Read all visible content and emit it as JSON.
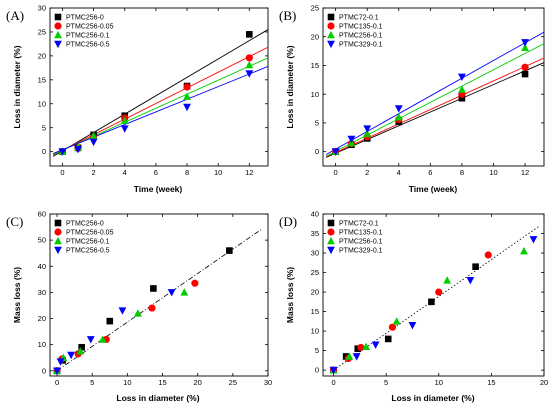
{
  "figure": {
    "symbols": {
      "square": "#000000",
      "circle": "#ff0000",
      "triangle_up": "#00cc00",
      "triangle_down": "#0000ff"
    }
  },
  "chart_data": [
    {
      "panel_label": "(A)",
      "type": "scatter",
      "xlabel": "Time (week)",
      "ylabel": "Loss in diameter (%)",
      "xlim": [
        -0.8,
        13.2
      ],
      "ylim": [
        -3,
        30
      ],
      "xticks": [
        0,
        2,
        4,
        6,
        8,
        10,
        12
      ],
      "yticks": [
        0,
        5,
        10,
        15,
        20,
        25,
        30
      ],
      "grid": false,
      "legend_position": "top-left",
      "series": [
        {
          "name": "PTMC256-0",
          "marker": "square",
          "color": "#000000",
          "x": [
            0,
            1,
            2,
            4,
            8,
            12
          ],
          "y": [
            0,
            0.8,
            3.5,
            7.5,
            13.7,
            24.5
          ],
          "fit": [
            [
              -0.6,
              -1.0
            ],
            [
              13.2,
              25.5
            ]
          ]
        },
        {
          "name": "PTMC256-0.05",
          "marker": "circle",
          "color": "#ff0000",
          "x": [
            0,
            1,
            2,
            4,
            8,
            12
          ],
          "y": [
            0,
            0.7,
            3.0,
            7.0,
            13.5,
            19.6
          ],
          "fit": [
            [
              -0.6,
              -0.7
            ],
            [
              13.2,
              21.8
            ]
          ]
        },
        {
          "name": "PTMC256-0.1",
          "marker": "triangle_up",
          "color": "#00cc00",
          "x": [
            0,
            1,
            2,
            4,
            8,
            12
          ],
          "y": [
            0,
            0.9,
            3.3,
            6.5,
            11.5,
            18.1
          ],
          "fit": [
            [
              -0.6,
              -0.6
            ],
            [
              13.2,
              19.6
            ]
          ]
        },
        {
          "name": "PTMC256-0.5",
          "marker": "triangle_down",
          "color": "#0000ff",
          "x": [
            0,
            1,
            2,
            4,
            8,
            12
          ],
          "y": [
            0,
            0.5,
            2.0,
            4.8,
            9.3,
            16.3
          ],
          "fit": [
            [
              -0.6,
              -0.4
            ],
            [
              13.2,
              17.8
            ]
          ]
        }
      ]
    },
    {
      "panel_label": "(B)",
      "type": "scatter",
      "xlabel": "Time (week)",
      "ylabel": "Loss in diameter (%)",
      "xlim": [
        -0.8,
        13.2
      ],
      "ylim": [
        -2.5,
        25
      ],
      "xticks": [
        0,
        2,
        4,
        6,
        8,
        10,
        12
      ],
      "yticks": [
        0,
        5,
        10,
        15,
        20,
        25
      ],
      "grid": false,
      "legend_position": "top-left",
      "series": [
        {
          "name": "PTMC72-0.1",
          "marker": "square",
          "color": "#000000",
          "x": [
            0,
            1,
            2,
            4,
            8,
            12
          ],
          "y": [
            0,
            1.2,
            2.3,
            5.2,
            9.3,
            13.5
          ],
          "fit": [
            [
              -0.6,
              -1.0
            ],
            [
              13.2,
              15.5
            ]
          ]
        },
        {
          "name": "PTMC135-0.1",
          "marker": "circle",
          "color": "#ff0000",
          "x": [
            0,
            1,
            2,
            4,
            8,
            12
          ],
          "y": [
            0,
            1.4,
            2.6,
            5.6,
            10.0,
            14.7
          ],
          "fit": [
            [
              -0.6,
              -0.9
            ],
            [
              13.2,
              16.3
            ]
          ]
        },
        {
          "name": "PTMC256-0.1",
          "marker": "triangle_up",
          "color": "#00cc00",
          "x": [
            0,
            1,
            2,
            4,
            8,
            12
          ],
          "y": [
            0,
            1.5,
            3.1,
            6.0,
            10.8,
            18.1
          ],
          "fit": [
            [
              -0.6,
              -0.8
            ],
            [
              13.2,
              18.8
            ]
          ]
        },
        {
          "name": "PTMC329-0.1",
          "marker": "triangle_down",
          "color": "#0000ff",
          "x": [
            0,
            1,
            2,
            4,
            8,
            12
          ],
          "y": [
            0,
            2.2,
            4.0,
            7.5,
            13.0,
            19.0
          ],
          "fit": [
            [
              -0.6,
              -0.5
            ],
            [
              13.2,
              20.8
            ]
          ]
        }
      ]
    },
    {
      "panel_label": "(C)",
      "type": "scatter",
      "xlabel": "Loss in diameter (%)",
      "ylabel": "Mass loss (%)",
      "xlim": [
        -1,
        30
      ],
      "ylim": [
        -2,
        60
      ],
      "xticks": [
        0,
        5,
        10,
        15,
        20,
        25,
        30
      ],
      "yticks": [
        0,
        10,
        20,
        30,
        40,
        50,
        60
      ],
      "grid": false,
      "legend_position": "top-left",
      "reference_line": [
        [
          0,
          0
        ],
        [
          29,
          54
        ]
      ],
      "series": [
        {
          "name": "PTMC256-0",
          "marker": "square",
          "color": "#000000",
          "x": [
            0,
            0.8,
            3.5,
            7.5,
            13.7,
            24.5
          ],
          "y": [
            0,
            4.0,
            9.0,
            19.0,
            31.5,
            46.0
          ]
        },
        {
          "name": "PTMC256-0.05",
          "marker": "circle",
          "color": "#ff0000",
          "x": [
            0,
            0.7,
            3.0,
            7.0,
            13.5,
            19.6
          ],
          "y": [
            0,
            4.5,
            6.5,
            12.0,
            24.0,
            33.5
          ]
        },
        {
          "name": "PTMC256-0.1",
          "marker": "triangle_up",
          "color": "#00cc00",
          "x": [
            0,
            0.9,
            3.3,
            6.5,
            11.5,
            18.1
          ],
          "y": [
            0,
            5.0,
            7.5,
            12.0,
            22.0,
            30.0
          ]
        },
        {
          "name": "PTMC256-0.5",
          "marker": "triangle_down",
          "color": "#0000ff",
          "x": [
            0,
            0.5,
            2.0,
            4.8,
            9.3,
            16.3
          ],
          "y": [
            0,
            3.5,
            6.0,
            12.0,
            23.0,
            30.0
          ]
        }
      ]
    },
    {
      "panel_label": "(D)",
      "type": "scatter",
      "xlabel": "Loss in diameter (%)",
      "ylabel": "Mass loss (%)",
      "xlim": [
        -1,
        20
      ],
      "ylim": [
        -1.5,
        40
      ],
      "xticks": [
        0,
        5,
        10,
        15,
        20
      ],
      "yticks": [
        0,
        5,
        10,
        15,
        20,
        25,
        30,
        35,
        40
      ],
      "grid": false,
      "legend_position": "top-left",
      "reference_line": [
        [
          0,
          0
        ],
        [
          19.6,
          37
        ]
      ],
      "series": [
        {
          "name": "PTMC72-0.1",
          "marker": "square",
          "color": "#000000",
          "x": [
            0,
            1.2,
            2.3,
            5.2,
            9.3,
            13.5
          ],
          "y": [
            0,
            3.5,
            5.5,
            8.0,
            17.5,
            26.5
          ]
        },
        {
          "name": "PTMC135-0.1",
          "marker": "circle",
          "color": "#ff0000",
          "x": [
            0,
            1.4,
            2.6,
            5.6,
            10.0,
            14.7
          ],
          "y": [
            0,
            3.0,
            5.8,
            11.0,
            20.0,
            29.5
          ]
        },
        {
          "name": "PTMC256-0.1",
          "marker": "triangle_up",
          "color": "#00cc00",
          "x": [
            0,
            1.5,
            3.1,
            6.0,
            10.8,
            18.1
          ],
          "y": [
            0,
            3.5,
            6.0,
            12.5,
            23.0,
            30.5
          ]
        },
        {
          "name": "PTMC329-0.1",
          "marker": "triangle_down",
          "color": "#0000ff",
          "x": [
            0,
            2.2,
            4.0,
            7.5,
            13.0,
            19.0
          ],
          "y": [
            0,
            3.5,
            6.5,
            11.5,
            23.0,
            33.5
          ]
        }
      ]
    }
  ]
}
